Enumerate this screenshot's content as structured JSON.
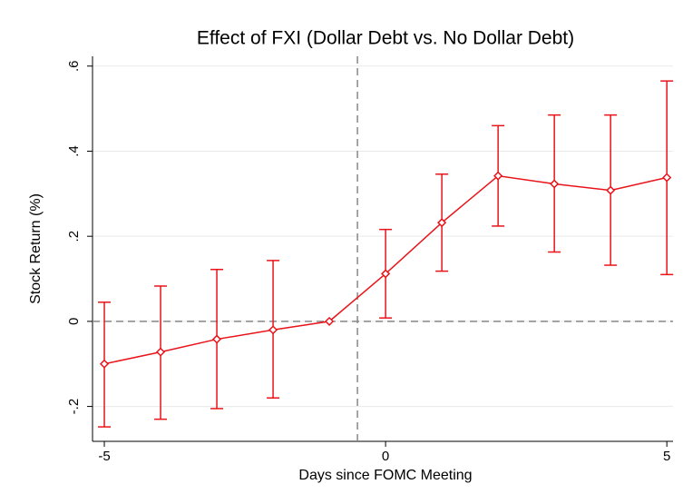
{
  "chart_data": {
    "type": "line",
    "title": "Effect of FXI (Dollar Debt vs. No Dollar Debt)",
    "xlabel": "Days since FOMC Meeting",
    "ylabel": "Stock Return (%)",
    "x": [
      -5,
      -4,
      -3,
      -2,
      -1,
      0,
      1,
      2,
      3,
      4,
      5
    ],
    "series": [
      {
        "color": "#e8141a",
        "values": [
          -0.1,
          -0.072,
          -0.042,
          -0.02,
          0,
          0.112,
          0.232,
          0.342,
          0.323,
          0.308,
          0.338
        ],
        "lower": [
          -0.248,
          -0.23,
          -0.205,
          -0.18,
          null,
          0.008,
          0.118,
          0.224,
          0.163,
          0.132,
          0.11
        ],
        "upper": [
          0.045,
          0.083,
          0.122,
          0.143,
          null,
          0.216,
          0.346,
          0.46,
          0.485,
          0.485,
          0.565
        ]
      }
    ],
    "xlim": [
      -5.21,
      5.11
    ],
    "ylim": [
      -0.282,
      0.623
    ],
    "xticks": [
      -5,
      0,
      5
    ],
    "yticks": [
      {
        "value": -0.2,
        "label": "-.2"
      },
      0,
      {
        "value": 0.2,
        "label": ".2"
      },
      {
        "value": 0.4,
        "label": ".4"
      },
      {
        "value": 0.6,
        "label": ".6"
      }
    ],
    "grid": true,
    "vline": -0.5,
    "hline": 0
  }
}
